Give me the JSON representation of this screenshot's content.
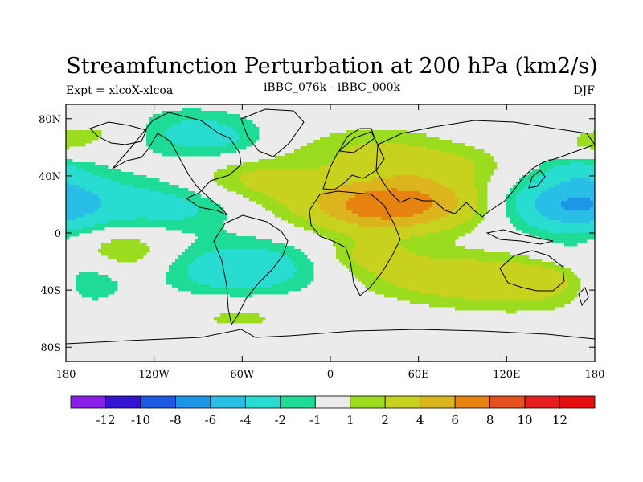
{
  "chart_data": {
    "type": "contour_map",
    "title": "Streamfunction Perturbation at 200 hPa (km2/s)",
    "left_label": "Expt = xlcoX-xlcoa",
    "center_label": "iBBC_076k - iBBC_000k",
    "right_label": "DJF",
    "projection": "cylindrical equidistant",
    "lon_range": [
      -180,
      180
    ],
    "lat_range": [
      -90,
      90
    ],
    "x_ticks": [
      {
        "lon": -180,
        "label": "180"
      },
      {
        "lon": -120,
        "label": "120W"
      },
      {
        "lon": -60,
        "label": "60W"
      },
      {
        "lon": 0,
        "label": "0"
      },
      {
        "lon": 60,
        "label": "60E"
      },
      {
        "lon": 120,
        "label": "120E"
      },
      {
        "lon": 180,
        "label": "180"
      }
    ],
    "y_ticks": [
      {
        "lat": 80,
        "label": "80N"
      },
      {
        "lat": 40,
        "label": "40N"
      },
      {
        "lat": 0,
        "label": "0"
      },
      {
        "lat": -40,
        "label": "40S"
      },
      {
        "lat": -80,
        "label": "80S"
      }
    ],
    "contour_levels": [
      "-12",
      "-10",
      "-8",
      "-6",
      "-4",
      "-2",
      "-1",
      "1",
      "2",
      "4",
      "6",
      "8",
      "10",
      "12"
    ],
    "colors": [
      "#8a1ee6",
      "#3214d2",
      "#1e5ae6",
      "#1e96e6",
      "#28bee6",
      "#28dcd2",
      "#1edc96",
      "#ebebeb",
      "#9bdc1e",
      "#c8d21e",
      "#dcb41e",
      "#e6820f",
      "#e6501e",
      "#e61e1e",
      "#e60f0f"
    ],
    "anomalies": [
      {
        "lon": -150,
        "lat": 70,
        "v": 1.5,
        "rx": 20,
        "ry": 10
      },
      {
        "lon": -102,
        "lat": 70,
        "v": -2.2,
        "rx": 32,
        "ry": 13
      },
      {
        "lon": -70,
        "lat": 65,
        "v": -1.3,
        "rx": 20,
        "ry": 11
      },
      {
        "lon": -55,
        "lat": 38,
        "v": 2.2,
        "rx": 30,
        "ry": 12
      },
      {
        "lon": -172,
        "lat": 22,
        "v": -3.0,
        "rx": 38,
        "ry": 15
      },
      {
        "lon": -100,
        "lat": 18,
        "v": -2.2,
        "rx": 30,
        "ry": 12
      },
      {
        "lon": -140,
        "lat": -12,
        "v": 2.3,
        "rx": 25,
        "ry": 12
      },
      {
        "lon": -60,
        "lat": -25,
        "v": -3.5,
        "rx": 40,
        "ry": 14
      },
      {
        "lon": -165,
        "lat": -35,
        "v": -2.2,
        "rx": 18,
        "ry": 12
      },
      {
        "lon": -62,
        "lat": -58,
        "v": 1.3,
        "rx": 38,
        "ry": 9
      },
      {
        "lon": 30,
        "lat": 58,
        "v": 2.0,
        "rx": 38,
        "ry": 12
      },
      {
        "lon": 80,
        "lat": 48,
        "v": 1.5,
        "rx": 30,
        "ry": 9
      },
      {
        "lon": 48,
        "lat": 22,
        "v": 6.3,
        "rx": 48,
        "ry": 14
      },
      {
        "lon": 30,
        "lat": 15,
        "v": 2.0,
        "rx": 28,
        "ry": 10
      },
      {
        "lon": 25,
        "lat": -15,
        "v": 2.0,
        "rx": 22,
        "ry": 9
      },
      {
        "lon": 80,
        "lat": -30,
        "v": 3.0,
        "rx": 45,
        "ry": 12
      },
      {
        "lon": 150,
        "lat": -30,
        "v": 2.2,
        "rx": 25,
        "ry": 9
      },
      {
        "lon": 130,
        "lat": 22,
        "v": -2.0,
        "rx": 30,
        "ry": 14
      },
      {
        "lon": 165,
        "lat": 18,
        "v": -3.2,
        "rx": 25,
        "ry": 12
      },
      {
        "lon": 170,
        "lat": 45,
        "v": -2.0,
        "rx": 18,
        "ry": 9
      },
      {
        "lon": 175,
        "lat": 60,
        "v": 1.5,
        "rx": 15,
        "ry": 9
      },
      {
        "lon": 165,
        "lat": -20,
        "v": -1.3,
        "rx": 20,
        "ry": 10
      },
      {
        "lon": 130,
        "lat": -45,
        "v": 1.3,
        "rx": 40,
        "ry": 10
      }
    ]
  }
}
